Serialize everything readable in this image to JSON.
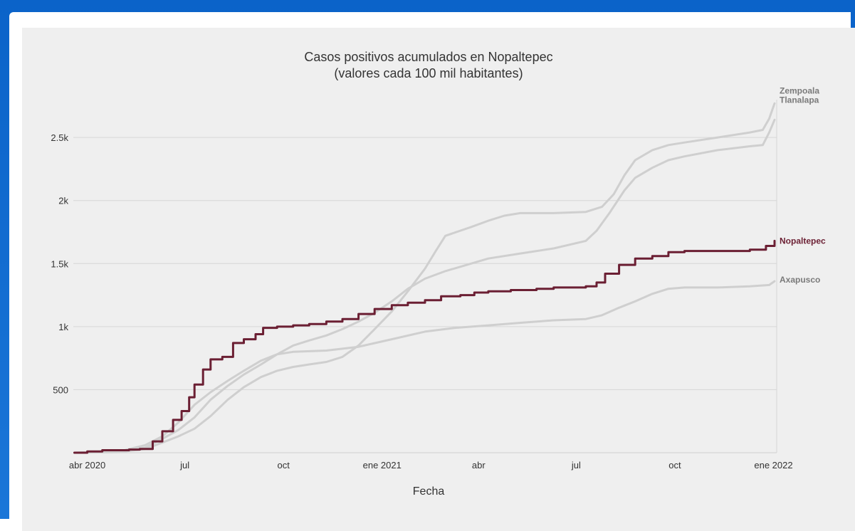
{
  "chart_data": {
    "type": "line",
    "title": "Casos positivos acumulados en Nopaltepec",
    "subtitle": "(valores cada 100 mil habitantes)",
    "xlabel": "Fecha",
    "ylabel": "",
    "x_ticks": [
      {
        "date": "2020-04-01",
        "label": "abr 2020"
      },
      {
        "date": "2020-07-01",
        "label": "jul"
      },
      {
        "date": "2020-10-01",
        "label": "oct"
      },
      {
        "date": "2021-01-01",
        "label": "ene 2021"
      },
      {
        "date": "2021-04-01",
        "label": "abr"
      },
      {
        "date": "2021-07-01",
        "label": "jul"
      },
      {
        "date": "2021-10-01",
        "label": "oct"
      },
      {
        "date": "2022-01-01",
        "label": "ene 2022"
      }
    ],
    "y_ticks": [
      {
        "value": 500,
        "label": "500"
      },
      {
        "value": 1000,
        "label": "1k"
      },
      {
        "value": 1500,
        "label": "1.5k"
      },
      {
        "value": 2000,
        "label": "2k"
      },
      {
        "value": 2500,
        "label": "2.5k"
      }
    ],
    "xlim": [
      "2020-03-19",
      "2022-01-04"
    ],
    "ylim": [
      0,
      2800
    ],
    "grid": "horizontal",
    "legend": "labels at line ends (right)",
    "series": [
      {
        "name": "Zempoala",
        "color": "#cfcfcf",
        "highlight": false,
        "points": [
          [
            "2020-03-20",
            0
          ],
          [
            "2020-05-01",
            5
          ],
          [
            "2020-05-25",
            30
          ],
          [
            "2020-06-10",
            80
          ],
          [
            "2020-06-25",
            130
          ],
          [
            "2020-07-10",
            190
          ],
          [
            "2020-07-25",
            290
          ],
          [
            "2020-08-10",
            420
          ],
          [
            "2020-08-25",
            520
          ],
          [
            "2020-09-10",
            600
          ],
          [
            "2020-09-25",
            650
          ],
          [
            "2020-10-10",
            680
          ],
          [
            "2020-10-25",
            700
          ],
          [
            "2020-11-10",
            720
          ],
          [
            "2020-11-25",
            760
          ],
          [
            "2020-12-10",
            850
          ],
          [
            "2020-12-25",
            980
          ],
          [
            "2021-01-10",
            1120
          ],
          [
            "2021-01-25",
            1280
          ],
          [
            "2021-02-10",
            1460
          ],
          [
            "2021-02-20",
            1600
          ],
          [
            "2021-03-01",
            1720
          ],
          [
            "2021-03-25",
            1790
          ],
          [
            "2021-04-10",
            1840
          ],
          [
            "2021-04-25",
            1880
          ],
          [
            "2021-05-10",
            1900
          ],
          [
            "2021-06-10",
            1900
          ],
          [
            "2021-07-10",
            1910
          ],
          [
            "2021-07-25",
            1950
          ],
          [
            "2021-08-05",
            2050
          ],
          [
            "2021-08-15",
            2200
          ],
          [
            "2021-08-25",
            2320
          ],
          [
            "2021-09-10",
            2400
          ],
          [
            "2021-09-25",
            2440
          ],
          [
            "2021-10-10",
            2460
          ],
          [
            "2021-11-10",
            2500
          ],
          [
            "2021-12-10",
            2540
          ],
          [
            "2021-12-22",
            2560
          ],
          [
            "2021-12-28",
            2650
          ],
          [
            "2022-01-02",
            2770
          ]
        ]
      },
      {
        "name": "Tlanalapa",
        "color": "#cfcfcf",
        "highlight": false,
        "points": [
          [
            "2020-03-20",
            0
          ],
          [
            "2020-05-01",
            8
          ],
          [
            "2020-05-25",
            40
          ],
          [
            "2020-06-10",
            110
          ],
          [
            "2020-06-25",
            180
          ],
          [
            "2020-07-10",
            280
          ],
          [
            "2020-07-25",
            420
          ],
          [
            "2020-08-10",
            530
          ],
          [
            "2020-08-25",
            620
          ],
          [
            "2020-09-10",
            700
          ],
          [
            "2020-09-25",
            780
          ],
          [
            "2020-10-10",
            850
          ],
          [
            "2020-10-25",
            890
          ],
          [
            "2020-11-10",
            930
          ],
          [
            "2020-11-25",
            980
          ],
          [
            "2020-12-10",
            1040
          ],
          [
            "2020-12-25",
            1110
          ],
          [
            "2021-01-10",
            1200
          ],
          [
            "2021-01-25",
            1300
          ],
          [
            "2021-02-10",
            1380
          ],
          [
            "2021-03-01",
            1440
          ],
          [
            "2021-03-25",
            1500
          ],
          [
            "2021-04-10",
            1540
          ],
          [
            "2021-05-10",
            1580
          ],
          [
            "2021-06-10",
            1620
          ],
          [
            "2021-07-10",
            1680
          ],
          [
            "2021-07-20",
            1760
          ],
          [
            "2021-08-01",
            1900
          ],
          [
            "2021-08-15",
            2080
          ],
          [
            "2021-08-25",
            2180
          ],
          [
            "2021-09-10",
            2260
          ],
          [
            "2021-09-25",
            2320
          ],
          [
            "2021-10-10",
            2350
          ],
          [
            "2021-11-10",
            2400
          ],
          [
            "2021-12-10",
            2430
          ],
          [
            "2021-12-22",
            2440
          ],
          [
            "2021-12-28",
            2540
          ],
          [
            "2022-01-02",
            2640
          ]
        ]
      },
      {
        "name": "Axapusco",
        "color": "#cfcfcf",
        "highlight": false,
        "points": [
          [
            "2020-03-20",
            0
          ],
          [
            "2020-05-01",
            10
          ],
          [
            "2020-05-25",
            60
          ],
          [
            "2020-06-10",
            130
          ],
          [
            "2020-06-25",
            240
          ],
          [
            "2020-07-10",
            380
          ],
          [
            "2020-07-25",
            480
          ],
          [
            "2020-08-10",
            570
          ],
          [
            "2020-08-25",
            650
          ],
          [
            "2020-09-10",
            730
          ],
          [
            "2020-09-25",
            780
          ],
          [
            "2020-10-10",
            800
          ],
          [
            "2020-11-10",
            810
          ],
          [
            "2020-12-10",
            840
          ],
          [
            "2021-01-10",
            900
          ],
          [
            "2021-02-10",
            960
          ],
          [
            "2021-03-10",
            990
          ],
          [
            "2021-04-10",
            1010
          ],
          [
            "2021-05-10",
            1030
          ],
          [
            "2021-06-10",
            1050
          ],
          [
            "2021-07-10",
            1060
          ],
          [
            "2021-07-25",
            1090
          ],
          [
            "2021-08-10",
            1150
          ],
          [
            "2021-08-25",
            1200
          ],
          [
            "2021-09-10",
            1260
          ],
          [
            "2021-09-25",
            1300
          ],
          [
            "2021-10-10",
            1310
          ],
          [
            "2021-11-10",
            1310
          ],
          [
            "2021-12-10",
            1320
          ],
          [
            "2021-12-28",
            1330
          ],
          [
            "2022-01-02",
            1360
          ]
        ]
      },
      {
        "name": "Nopaltepec",
        "color": "#6b1f33",
        "highlight": true,
        "points": [
          [
            "2020-03-20",
            0
          ],
          [
            "2020-04-01",
            10
          ],
          [
            "2020-04-15",
            20
          ],
          [
            "2020-05-10",
            25
          ],
          [
            "2020-05-20",
            30
          ],
          [
            "2020-06-01",
            90
          ],
          [
            "2020-06-10",
            170
          ],
          [
            "2020-06-20",
            260
          ],
          [
            "2020-06-28",
            330
          ],
          [
            "2020-07-05",
            440
          ],
          [
            "2020-07-10",
            540
          ],
          [
            "2020-07-18",
            660
          ],
          [
            "2020-07-25",
            740
          ],
          [
            "2020-08-05",
            760
          ],
          [
            "2020-08-15",
            870
          ],
          [
            "2020-08-25",
            900
          ],
          [
            "2020-09-05",
            940
          ],
          [
            "2020-09-12",
            990
          ],
          [
            "2020-09-25",
            1000
          ],
          [
            "2020-10-10",
            1010
          ],
          [
            "2020-10-25",
            1020
          ],
          [
            "2020-11-10",
            1040
          ],
          [
            "2020-11-25",
            1060
          ],
          [
            "2020-12-10",
            1100
          ],
          [
            "2020-12-25",
            1140
          ],
          [
            "2021-01-10",
            1170
          ],
          [
            "2021-01-25",
            1190
          ],
          [
            "2021-02-10",
            1210
          ],
          [
            "2021-02-25",
            1240
          ],
          [
            "2021-03-15",
            1250
          ],
          [
            "2021-03-28",
            1270
          ],
          [
            "2021-04-10",
            1280
          ],
          [
            "2021-05-01",
            1290
          ],
          [
            "2021-05-25",
            1300
          ],
          [
            "2021-06-10",
            1310
          ],
          [
            "2021-07-10",
            1320
          ],
          [
            "2021-07-20",
            1350
          ],
          [
            "2021-07-28",
            1420
          ],
          [
            "2021-08-10",
            1490
          ],
          [
            "2021-08-25",
            1540
          ],
          [
            "2021-09-10",
            1560
          ],
          [
            "2021-09-25",
            1590
          ],
          [
            "2021-10-10",
            1600
          ],
          [
            "2021-11-10",
            1600
          ],
          [
            "2021-12-10",
            1610
          ],
          [
            "2021-12-25",
            1640
          ],
          [
            "2022-01-02",
            1680
          ]
        ]
      }
    ]
  }
}
